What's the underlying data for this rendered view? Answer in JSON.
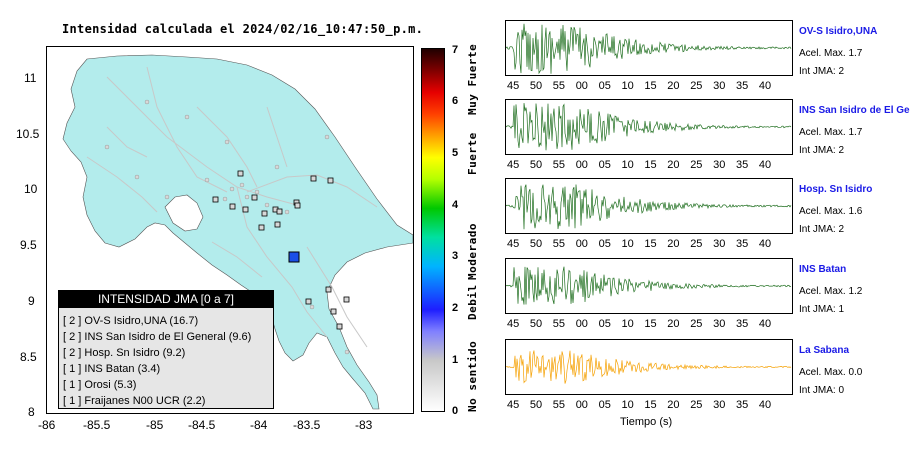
{
  "map": {
    "title": "Intensidad calculada el 2024/02/16_10:47:50_p.m.",
    "lat_ticks": [
      "11",
      "10.5",
      "10",
      "9.5",
      "9",
      "8.5",
      "8"
    ],
    "lon_ticks": [
      "-86",
      "-85.5",
      "-85",
      "-84.5",
      "-84",
      "-83.5",
      "-83"
    ],
    "land_color": "#b3ecec",
    "epicenter_color": "#1a4fe6"
  },
  "colorbar": {
    "ticks": [
      "0",
      "1",
      "2",
      "3",
      "4",
      "5",
      "6",
      "7"
    ],
    "words": [
      "No sentido",
      "Debil",
      "Moderado",
      "Fuerte",
      "Muy Fuerte"
    ]
  },
  "legend": {
    "title": "INTENSIDAD JMA [0 a 7]",
    "rows": [
      "[ 2 ]  OV-S Isidro,UNA (16.7)",
      "[ 2 ]  INS San Isidro de El General (9.6)",
      "[ 2 ]  Hosp. Sn Isidro (9.2)",
      "[ 1 ]  INS Batan (3.4)",
      "[ 1 ]  Orosi (5.3)",
      "[ 1 ]  Fraijanes N00 UCR (2.2)"
    ]
  },
  "traces": {
    "time_ticks": [
      "45",
      "50",
      "55",
      "00",
      "05",
      "10",
      "15",
      "20",
      "25",
      "30",
      "35",
      "40"
    ],
    "x_label": "Tiempo (s)",
    "stations": [
      {
        "name": "OV-S Isidro,UNA",
        "acel": "Acel. Max. 1.7",
        "jma": "Int JMA: 2",
        "color": "#1e6e1e"
      },
      {
        "name": "INS San Isidro de El Ge",
        "acel": "Acel. Max. 1.7",
        "jma": "Int JMA: 2",
        "color": "#1e6e1e"
      },
      {
        "name": "Hosp. Sn Isidro",
        "acel": "Acel. Max. 1.6",
        "jma": "Int JMA: 2",
        "color": "#1e6e1e"
      },
      {
        "name": "INS Batan",
        "acel": "Acel. Max. 1.2",
        "jma": "Int JMA: 1",
        "color": "#1e6e1e"
      },
      {
        "name": "La Sabana",
        "acel": "Acel. Max. 0.0",
        "jma": "Int JMA: 0",
        "color": "#f5a000"
      }
    ]
  }
}
